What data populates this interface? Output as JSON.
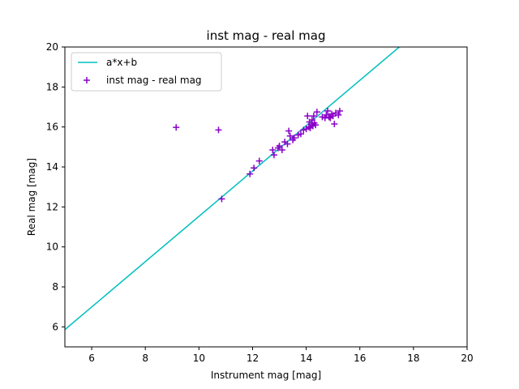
{
  "chart_data": {
    "type": "scatter",
    "title": "inst mag - real mag",
    "xlabel": "Instrument mag [mag]",
    "ylabel": "Real mag [mag]",
    "xlim": [
      5,
      20
    ],
    "ylim": [
      5,
      20
    ],
    "xticks": [
      6,
      8,
      10,
      12,
      14,
      16,
      18,
      20
    ],
    "yticks": [
      6,
      8,
      10,
      12,
      14,
      16,
      18,
      20
    ],
    "grid": false,
    "legend_position": "top-left",
    "series": [
      {
        "name": "a*x+b",
        "kind": "line",
        "color": "#00bfbf",
        "x": [
          5,
          17.47
        ],
        "y": [
          5.86,
          20
        ]
      },
      {
        "name": "inst mag - real mag",
        "kind": "scatter",
        "marker": "+",
        "color": "#8a00c8",
        "x": [
          9.15,
          10.73,
          10.85,
          11.9,
          12.05,
          12.25,
          12.75,
          12.8,
          12.95,
          13.0,
          13.1,
          13.2,
          13.3,
          13.35,
          13.4,
          13.5,
          13.55,
          13.7,
          13.8,
          13.9,
          14.0,
          14.05,
          14.1,
          14.12,
          14.15,
          14.2,
          14.22,
          14.25,
          14.28,
          14.3,
          14.35,
          14.4,
          14.6,
          14.7,
          14.75,
          14.8,
          14.85,
          14.9,
          14.95,
          15.0,
          15.05,
          15.1,
          15.2,
          15.25
        ],
        "y": [
          15.98,
          15.85,
          12.4,
          13.65,
          13.95,
          14.3,
          14.85,
          14.6,
          14.95,
          15.05,
          14.85,
          15.25,
          15.15,
          15.8,
          15.55,
          15.35,
          15.45,
          15.6,
          15.65,
          15.85,
          15.9,
          16.55,
          16.0,
          16.25,
          15.95,
          16.15,
          16.35,
          16.05,
          16.55,
          16.2,
          16.1,
          16.75,
          16.5,
          16.45,
          16.6,
          16.8,
          16.5,
          16.45,
          16.65,
          16.55,
          16.15,
          16.7,
          16.6,
          16.8
        ]
      }
    ]
  }
}
